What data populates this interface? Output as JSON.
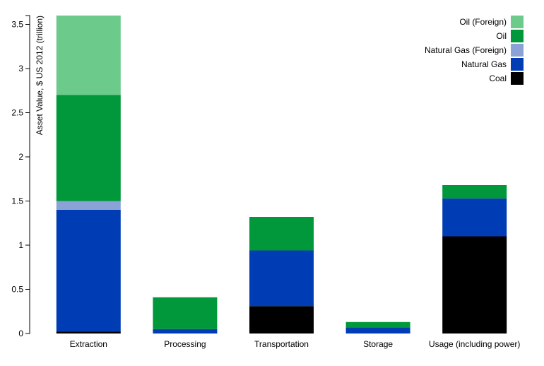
{
  "chart_data": {
    "type": "bar",
    "stacked": true,
    "ylabel": "Asset Value, $ US 2012 (trillion)",
    "xlabel": "",
    "ylim": [
      0,
      3.6
    ],
    "yticks": [
      0,
      0.5,
      1,
      1.5,
      2,
      2.5,
      3,
      3.5
    ],
    "ytick_labels": [
      "0",
      "0.5",
      "1",
      "1.5",
      "2",
      "2.5",
      "3",
      "3.5"
    ],
    "categories": [
      "Extraction",
      "Processing",
      "Transportation",
      "Storage",
      "Usage (including power)"
    ],
    "series": [
      {
        "name": "Coal",
        "color": "#000000",
        "values": [
          0.02,
          0.0,
          0.31,
          0.0,
          1.1
        ]
      },
      {
        "name": "Natural Gas",
        "color": "#003cb4",
        "values": [
          1.38,
          0.05,
          0.63,
          0.07,
          0.43
        ]
      },
      {
        "name": "Natural Gas (Foreign)",
        "color": "#8aa2d6",
        "values": [
          0.1,
          0.0,
          0.0,
          0.0,
          0.0
        ]
      },
      {
        "name": "Oil",
        "color": "#00983a",
        "values": [
          1.2,
          0.36,
          0.38,
          0.06,
          0.15
        ]
      },
      {
        "name": "Oil (Foreign)",
        "color": "#6ccb8a",
        "values": [
          0.9,
          0.0,
          0.0,
          0.0,
          0.0
        ]
      }
    ],
    "legend_order": [
      "Oil (Foreign)",
      "Oil",
      "Natural Gas (Foreign)",
      "Natural Gas",
      "Coal"
    ],
    "legend_position": "top-right",
    "grid": false
  }
}
